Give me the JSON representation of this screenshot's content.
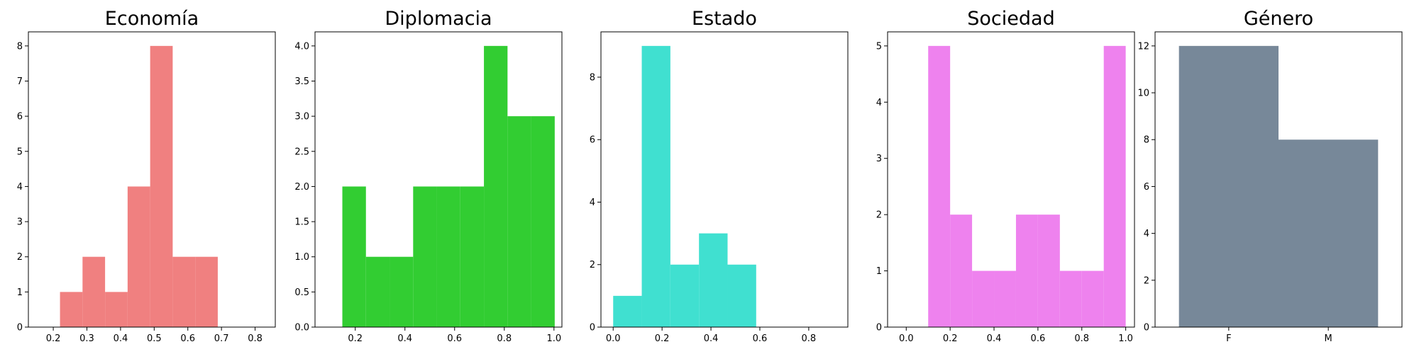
{
  "chart_data": [
    {
      "type": "bar",
      "title": "Economía",
      "color": "#f08080",
      "xlim": [
        0.126,
        0.86
      ],
      "ylim": [
        0,
        8.4
      ],
      "xticks": [
        0.2,
        0.3,
        0.4,
        0.5,
        0.6,
        0.7,
        0.8
      ],
      "xtick_labels": [
        "0.2",
        "0.3",
        "0.4",
        "0.5",
        "0.6",
        "0.7",
        "0.8"
      ],
      "yticks": [
        0,
        1,
        2,
        3,
        4,
        5,
        6,
        7,
        8
      ],
      "ytick_labels": [
        "0",
        "1",
        "2",
        "3",
        "4",
        "5",
        "6",
        "7",
        "8"
      ],
      "bins": [
        {
          "x0": 0.22,
          "x1": 0.287,
          "count": 1
        },
        {
          "x0": 0.287,
          "x1": 0.354,
          "count": 2
        },
        {
          "x0": 0.354,
          "x1": 0.421,
          "count": 1
        },
        {
          "x0": 0.421,
          "x1": 0.488,
          "count": 4
        },
        {
          "x0": 0.488,
          "x1": 0.555,
          "count": 8
        },
        {
          "x0": 0.555,
          "x1": 0.622,
          "count": 2
        },
        {
          "x0": 0.622,
          "x1": 0.689,
          "count": 2
        }
      ]
    },
    {
      "type": "bar",
      "title": "Diplomacia",
      "color": "#32cd32",
      "xlim": [
        0.038,
        1.032
      ],
      "ylim": [
        0,
        4.2
      ],
      "xticks": [
        0.2,
        0.4,
        0.6,
        0.8,
        1.0
      ],
      "xtick_labels": [
        "0.2",
        "0.4",
        "0.6",
        "0.8",
        "1.0"
      ],
      "yticks": [
        0,
        0.5,
        1,
        1.5,
        2,
        2.5,
        3,
        3.5,
        4
      ],
      "ytick_labels": [
        "0.0",
        "0.5",
        "1.0",
        "1.5",
        "2.0",
        "2.5",
        "3.0",
        "3.5",
        "4.0"
      ],
      "bins": [
        {
          "x0": 0.148,
          "x1": 0.243,
          "count": 2
        },
        {
          "x0": 0.243,
          "x1": 0.338,
          "count": 1
        },
        {
          "x0": 0.338,
          "x1": 0.433,
          "count": 1
        },
        {
          "x0": 0.433,
          "x1": 0.528,
          "count": 2
        },
        {
          "x0": 0.528,
          "x1": 0.623,
          "count": 2
        },
        {
          "x0": 0.623,
          "x1": 0.718,
          "count": 2
        },
        {
          "x0": 0.718,
          "x1": 0.813,
          "count": 4
        },
        {
          "x0": 0.813,
          "x1": 0.908,
          "count": 3
        },
        {
          "x0": 0.908,
          "x1": 1.003,
          "count": 3
        }
      ]
    },
    {
      "type": "bar",
      "title": "Estado",
      "color": "#40e0d0",
      "xlim": [
        -0.05,
        0.96
      ],
      "ylim": [
        0,
        9.45
      ],
      "xticks": [
        0.0,
        0.2,
        0.4,
        0.6,
        0.8
      ],
      "xtick_labels": [
        "0.0",
        "0.2",
        "0.4",
        "0.6",
        "0.8"
      ],
      "yticks": [
        0,
        2,
        4,
        6,
        8
      ],
      "ytick_labels": [
        "0",
        "2",
        "4",
        "6",
        "8"
      ],
      "bins": [
        {
          "x0": 0.0,
          "x1": 0.117,
          "count": 1
        },
        {
          "x0": 0.117,
          "x1": 0.234,
          "count": 9
        },
        {
          "x0": 0.234,
          "x1": 0.351,
          "count": 2
        },
        {
          "x0": 0.351,
          "x1": 0.468,
          "count": 3
        },
        {
          "x0": 0.468,
          "x1": 0.585,
          "count": 2
        }
      ]
    },
    {
      "type": "bar",
      "title": "Sociedad",
      "color": "#ee82ee",
      "xlim": [
        -0.085,
        1.04
      ],
      "ylim": [
        0,
        5.25
      ],
      "xticks": [
        0.0,
        0.2,
        0.4,
        0.6,
        0.8,
        1.0
      ],
      "xtick_labels": [
        "0.0",
        "0.2",
        "0.4",
        "0.6",
        "0.8",
        "1.0"
      ],
      "yticks": [
        0,
        1,
        2,
        3,
        4,
        5
      ],
      "ytick_labels": [
        "0",
        "1",
        "2",
        "3",
        "4",
        "5"
      ],
      "bins": [
        {
          "x0": 0.1,
          "x1": 0.2,
          "count": 5
        },
        {
          "x0": 0.2,
          "x1": 0.3,
          "count": 2
        },
        {
          "x0": 0.3,
          "x1": 0.4,
          "count": 1
        },
        {
          "x0": 0.4,
          "x1": 0.5,
          "count": 1
        },
        {
          "x0": 0.5,
          "x1": 0.6,
          "count": 2
        },
        {
          "x0": 0.6,
          "x1": 0.7,
          "count": 2
        },
        {
          "x0": 0.7,
          "x1": 0.8,
          "count": 1
        },
        {
          "x0": 0.8,
          "x1": 0.9,
          "count": 1
        },
        {
          "x0": 0.9,
          "x1": 1.0,
          "count": 5
        }
      ]
    },
    {
      "type": "bar",
      "title": "Género",
      "color": "#778899",
      "xlim": [
        -0.12,
        1.12
      ],
      "ylim": [
        0,
        12.6
      ],
      "xticks": [
        0.25,
        0.75
      ],
      "xtick_labels": [
        "F",
        "M"
      ],
      "yticks": [
        0,
        2,
        4,
        6,
        8,
        10,
        12
      ],
      "ytick_labels": [
        "0",
        "2",
        "4",
        "6",
        "8",
        "10",
        "12"
      ],
      "bins": [
        {
          "x0": -0.0,
          "x1": 0.5,
          "count": 12
        },
        {
          "x0": 0.5,
          "x1": 1.0,
          "count": 8
        }
      ]
    }
  ]
}
